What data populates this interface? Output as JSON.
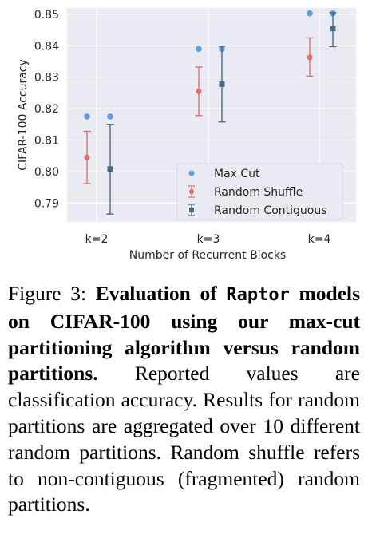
{
  "chart_data": {
    "type": "scatter",
    "categories": [
      "k=2",
      "k=3",
      "k=4"
    ],
    "xlabel": "Number of Recurrent Blocks",
    "ylabel": "CIFAR-100 Accuracy",
    "ylim": [
      0.784,
      0.852
    ],
    "yticks": [
      "0.79",
      "0.80",
      "0.81",
      "0.82",
      "0.83",
      "0.84",
      "0.85"
    ],
    "grid": true,
    "legend_position": "lower-right",
    "series": [
      {
        "name": "Max Cut",
        "marker": "circle",
        "color": "#5aa0e6",
        "values": [
          0.8175,
          0.8175,
          0.839,
          0.839,
          0.8503,
          0.8503
        ],
        "x": [
          0,
          0,
          1,
          1,
          2,
          2
        ]
      },
      {
        "name": "Random Shuffle",
        "marker": "circle",
        "color": "#e07070",
        "values": [
          0.8045,
          0.8255,
          0.8363
        ],
        "err_low": [
          0.7962,
          0.8178,
          0.8303
        ],
        "err_high": [
          0.8128,
          0.8332,
          0.8425
        ]
      },
      {
        "name": "Random Contiguous",
        "marker": "square",
        "color": "#4c6a80",
        "values": [
          0.8008,
          0.8278,
          0.8455
        ],
        "err_low": [
          0.7865,
          0.8158,
          0.8397
        ],
        "err_high": [
          0.815,
          0.8398,
          0.8505
        ]
      }
    ]
  },
  "caption": {
    "label": "Figure 3:",
    "bold_lead": "Evaluation of",
    "model_name": "Raptor",
    "bold_rest": "models on CIFAR-100 using our max-cut partitioning algorithm versus random partitions.",
    "body": "Reported values are classification accuracy. Results for random partitions are aggregated over 10 different random partitions. Random shuffle refers to non-contiguous (fragmented) random partitions."
  },
  "colors": {
    "plot_bg": "#eaeaf2",
    "grid": "#ffffff",
    "max_cut": "#5aa0e6",
    "random_shuffle": "#e07070",
    "random_contiguous": "#4c6a80"
  }
}
